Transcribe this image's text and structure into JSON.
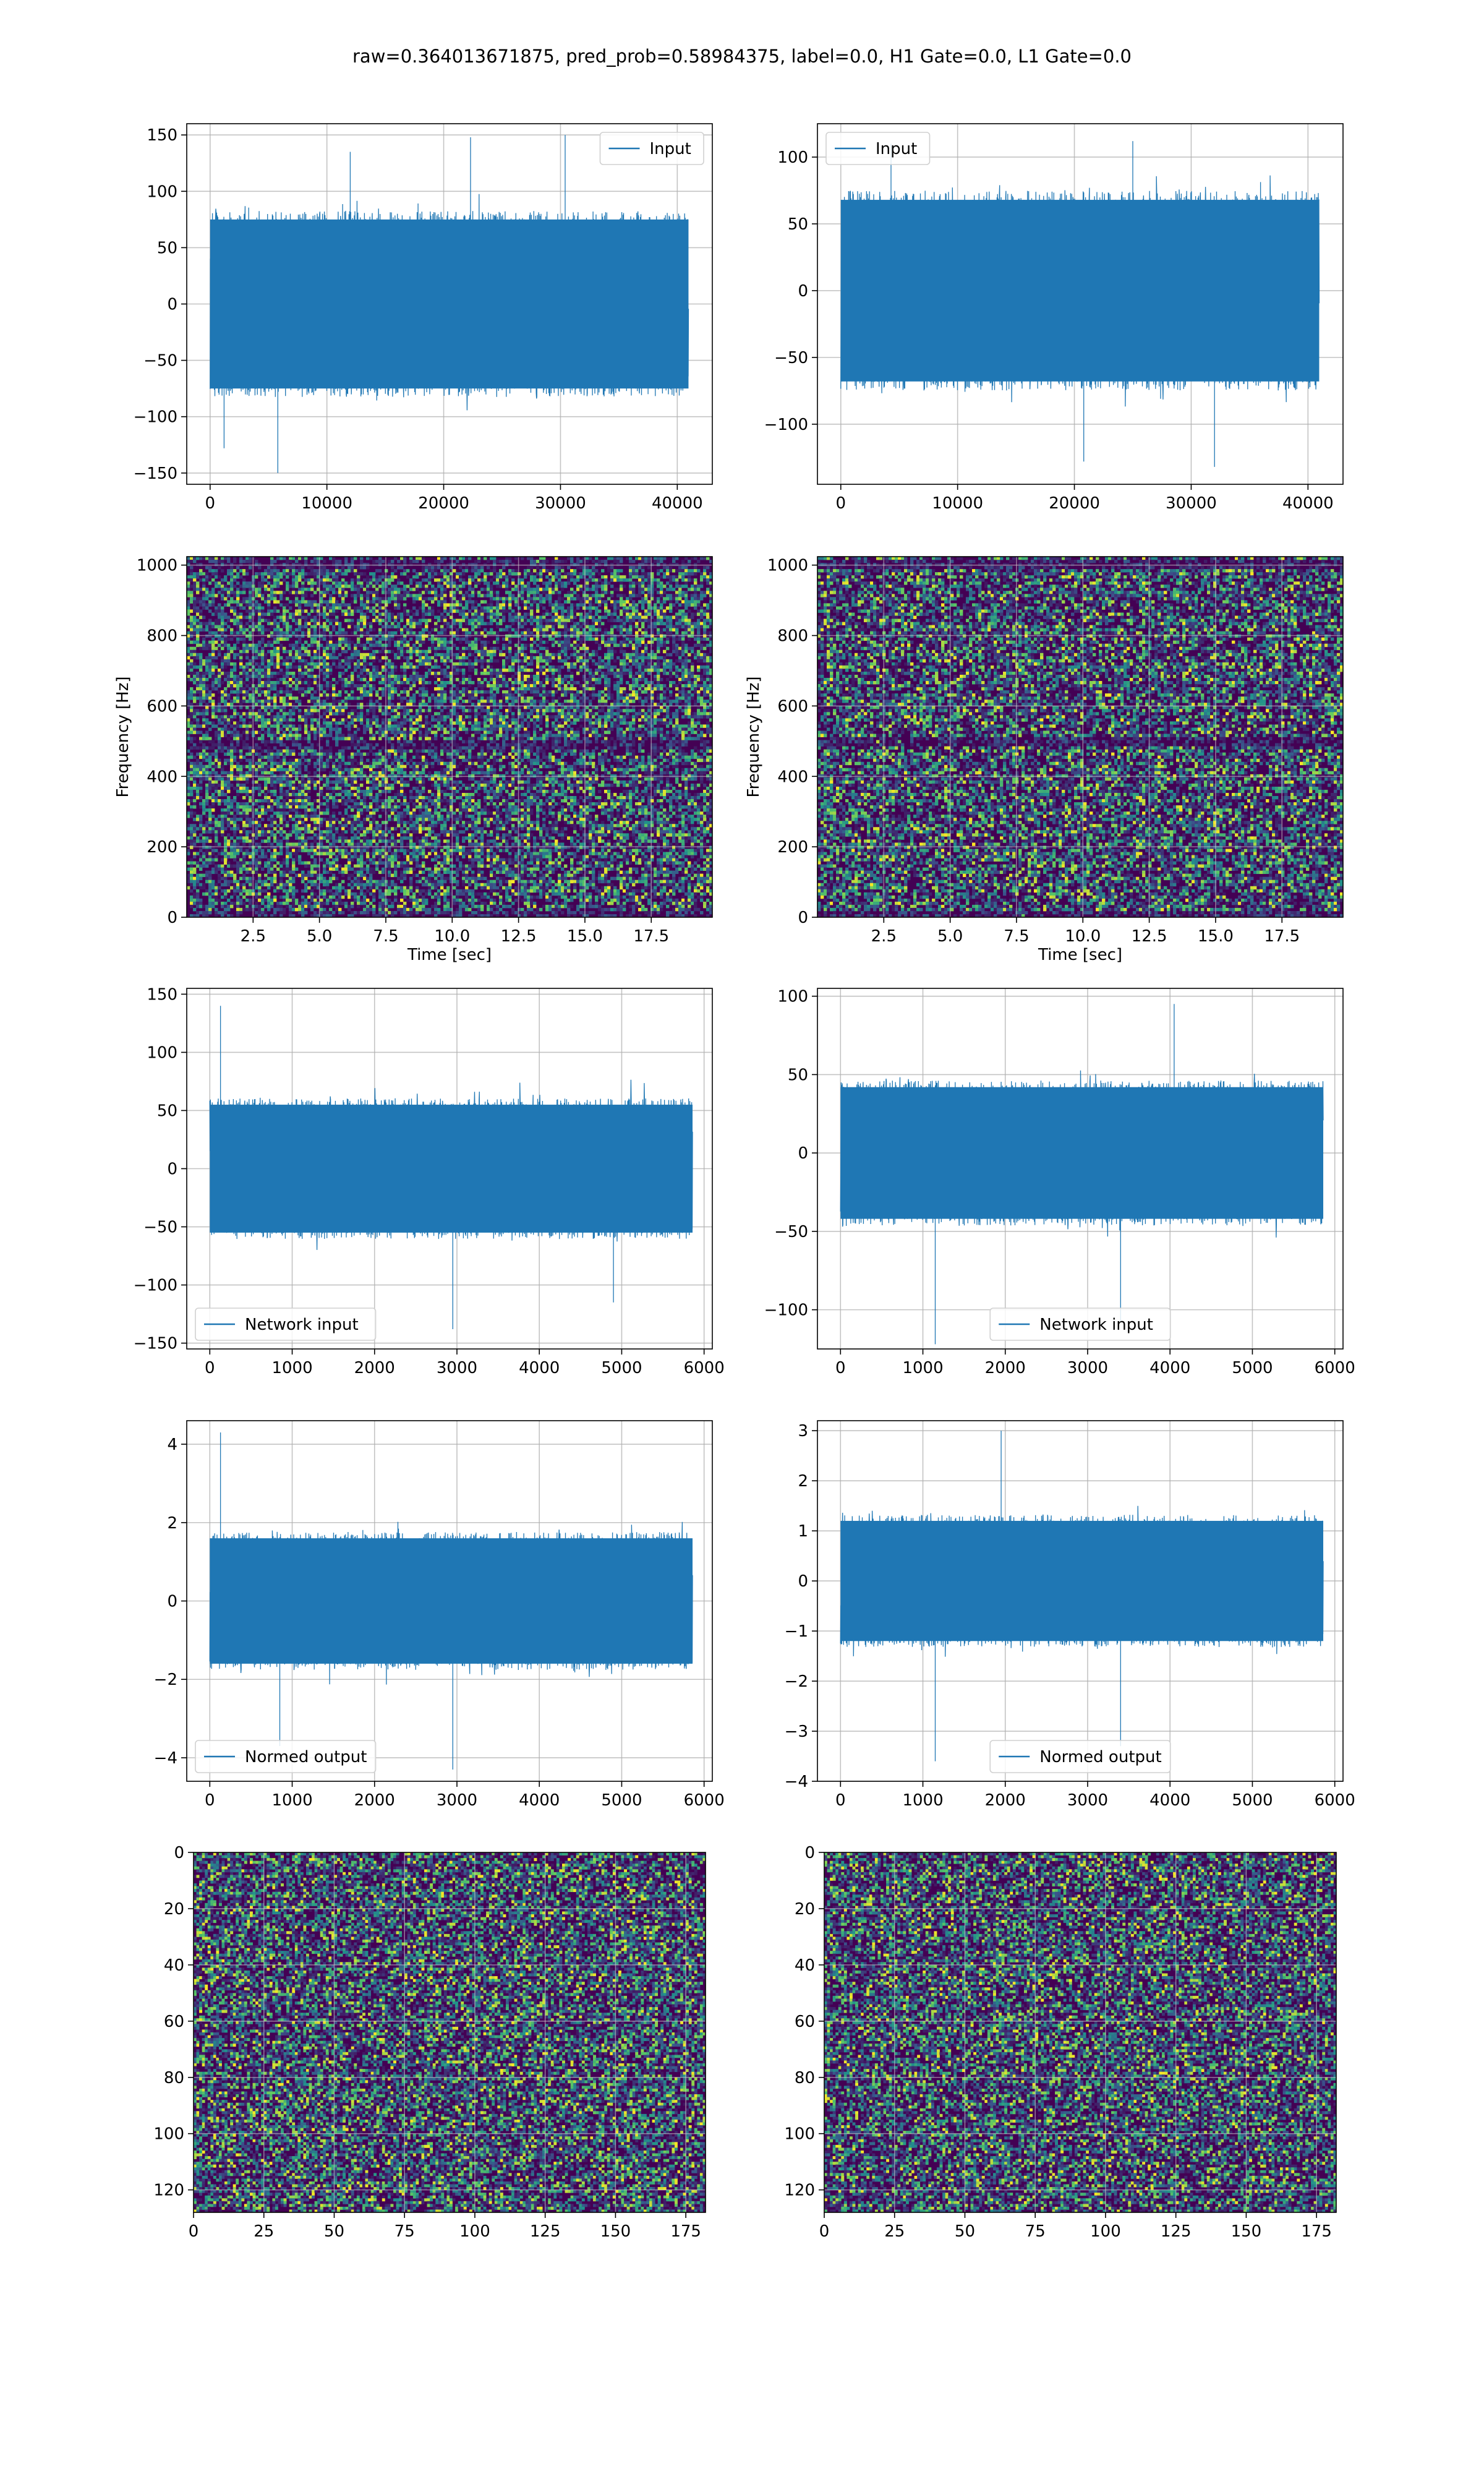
{
  "figure": {
    "suptitle": "raw=0.364013671875, pred_prob=0.58984375, label=0.0, H1 Gate=0.0, L1 Gate=0.0"
  },
  "colors": {
    "series": "#1f77b4",
    "grid": "#b0b0b0",
    "viridis_low": "#440154",
    "viridis_mid": "#21918c",
    "viridis_high": "#fde725"
  },
  "chart_data": [
    {
      "id": "h1-input",
      "type": "line",
      "xlabel": "",
      "ylabel": "",
      "xlim": [
        -2000,
        43000
      ],
      "ylim": [
        -160,
        160
      ],
      "xticks": [
        0,
        10000,
        20000,
        30000,
        40000
      ],
      "yticks": [
        -150,
        -100,
        -50,
        0,
        50,
        100,
        150
      ],
      "series": [
        {
          "name": "Input",
          "x_range": [
            0,
            40960
          ],
          "core_band": [
            -75,
            75
          ],
          "peaks": [
            {
              "x": 5800,
              "y": -150
            },
            {
              "x": 12000,
              "y": 135
            },
            {
              "x": 22300,
              "y": 148
            },
            {
              "x": 30400,
              "y": 150
            },
            {
              "x": 1200,
              "y": -128
            }
          ]
        }
      ],
      "legend": "upper right",
      "grid": true
    },
    {
      "id": "l1-input",
      "type": "line",
      "xlabel": "",
      "ylabel": "",
      "xlim": [
        -2000,
        43000
      ],
      "ylim": [
        -145,
        125
      ],
      "xticks": [
        0,
        10000,
        20000,
        30000,
        40000
      ],
      "yticks": [
        -100,
        -50,
        0,
        50,
        100
      ],
      "series": [
        {
          "name": "Input",
          "x_range": [
            0,
            40960
          ],
          "core_band": [
            -68,
            68
          ],
          "peaks": [
            {
              "x": 32000,
              "y": -132
            },
            {
              "x": 20800,
              "y": -128
            },
            {
              "x": 4300,
              "y": 110
            },
            {
              "x": 25000,
              "y": 112
            }
          ]
        }
      ],
      "legend": "upper left",
      "grid": true
    },
    {
      "id": "h1-spectrogram",
      "type": "heatmap",
      "xlabel": "Time [sec]",
      "ylabel": "Frequency [Hz]",
      "xlim": [
        0,
        19.8
      ],
      "ylim": [
        0,
        1024
      ],
      "xticks": [
        2.5,
        5.0,
        7.5,
        10.0,
        12.5,
        15.0,
        17.5
      ],
      "yticks": [
        0,
        200,
        400,
        600,
        800,
        1000
      ],
      "dark_bands_hz": [
        4,
        490,
        1000
      ],
      "colormap": "viridis",
      "grid": true
    },
    {
      "id": "l1-spectrogram",
      "type": "heatmap",
      "xlabel": "Time [sec]",
      "ylabel": "Frequency [Hz]",
      "xlim": [
        0,
        19.8
      ],
      "ylim": [
        0,
        1024
      ],
      "xticks": [
        2.5,
        5.0,
        7.5,
        10.0,
        12.5,
        15.0,
        17.5
      ],
      "yticks": [
        0,
        200,
        400,
        600,
        800,
        1000
      ],
      "dark_bands_hz": [
        4,
        500,
        1000
      ],
      "colormap": "viridis",
      "grid": true
    },
    {
      "id": "h1-network-input",
      "type": "line",
      "xlabel": "",
      "ylabel": "",
      "xlim": [
        -280,
        6100
      ],
      "ylim": [
        -155,
        155
      ],
      "xticks": [
        0,
        1000,
        2000,
        3000,
        4000,
        5000,
        6000
      ],
      "yticks": [
        -150,
        -100,
        -50,
        0,
        50,
        100,
        150
      ],
      "series": [
        {
          "name": "Network input",
          "x_range": [
            0,
            5860
          ],
          "core_band": [
            -55,
            55
          ],
          "peaks": [
            {
              "x": 130,
              "y": 140
            },
            {
              "x": 2950,
              "y": -138
            },
            {
              "x": 4900,
              "y": -115
            }
          ]
        }
      ],
      "legend": "lower left",
      "grid": true
    },
    {
      "id": "l1-network-input",
      "type": "line",
      "xlabel": "",
      "ylabel": "",
      "xlim": [
        -280,
        6100
      ],
      "ylim": [
        -125,
        105
      ],
      "xticks": [
        0,
        1000,
        2000,
        3000,
        4000,
        5000,
        6000
      ],
      "yticks": [
        -100,
        -50,
        0,
        50,
        100
      ],
      "series": [
        {
          "name": "Network input",
          "x_range": [
            0,
            5860
          ],
          "core_band": [
            -42,
            42
          ],
          "peaks": [
            {
              "x": 1150,
              "y": -122
            },
            {
              "x": 3400,
              "y": -108
            },
            {
              "x": 4050,
              "y": 95
            }
          ]
        }
      ],
      "legend": "lower center",
      "grid": true
    },
    {
      "id": "h1-normed-output",
      "type": "line",
      "xlabel": "",
      "ylabel": "",
      "xlim": [
        -280,
        6100
      ],
      "ylim": [
        -4.6,
        4.6
      ],
      "xticks": [
        0,
        1000,
        2000,
        3000,
        4000,
        5000,
        6000
      ],
      "yticks": [
        -4,
        -2,
        0,
        2,
        4
      ],
      "series": [
        {
          "name": "Normed output",
          "x_range": [
            0,
            5860
          ],
          "core_band": [
            -1.6,
            1.6
          ],
          "peaks": [
            {
              "x": 130,
              "y": 4.3
            },
            {
              "x": 2950,
              "y": -4.3
            },
            {
              "x": 850,
              "y": -3.7
            }
          ]
        }
      ],
      "legend": "lower left",
      "grid": true
    },
    {
      "id": "l1-normed-output",
      "type": "line",
      "xlabel": "",
      "ylabel": "",
      "xlim": [
        -280,
        6100
      ],
      "ylim": [
        -4.0,
        3.2
      ],
      "xticks": [
        0,
        1000,
        2000,
        3000,
        4000,
        5000,
        6000
      ],
      "yticks": [
        -4,
        -3,
        -2,
        -1,
        0,
        1,
        2,
        3
      ],
      "series": [
        {
          "name": "Normed output",
          "x_range": [
            0,
            5860
          ],
          "core_band": [
            -1.2,
            1.2
          ],
          "peaks": [
            {
              "x": 1150,
              "y": -3.6
            },
            {
              "x": 3400,
              "y": -3.3
            },
            {
              "x": 1950,
              "y": 3.0
            }
          ]
        }
      ],
      "legend": "lower center",
      "grid": true
    },
    {
      "id": "h1-image",
      "type": "heatmap",
      "xlabel": "",
      "ylabel": "",
      "xlim": [
        0,
        182
      ],
      "ylim": [
        128,
        0
      ],
      "xticks": [
        0,
        25,
        50,
        75,
        100,
        125,
        150,
        175
      ],
      "yticks": [
        0,
        20,
        40,
        60,
        80,
        100,
        120
      ],
      "shape": [
        128,
        182
      ],
      "colormap": "viridis",
      "grid": true
    },
    {
      "id": "l1-image",
      "type": "heatmap",
      "xlabel": "",
      "ylabel": "",
      "xlim": [
        0,
        182
      ],
      "ylim": [
        128,
        0
      ],
      "xticks": [
        0,
        25,
        50,
        75,
        100,
        125,
        150,
        175
      ],
      "yticks": [
        0,
        20,
        40,
        60,
        80,
        100,
        120
      ],
      "shape": [
        128,
        182
      ],
      "colormap": "viridis",
      "grid": true
    }
  ]
}
